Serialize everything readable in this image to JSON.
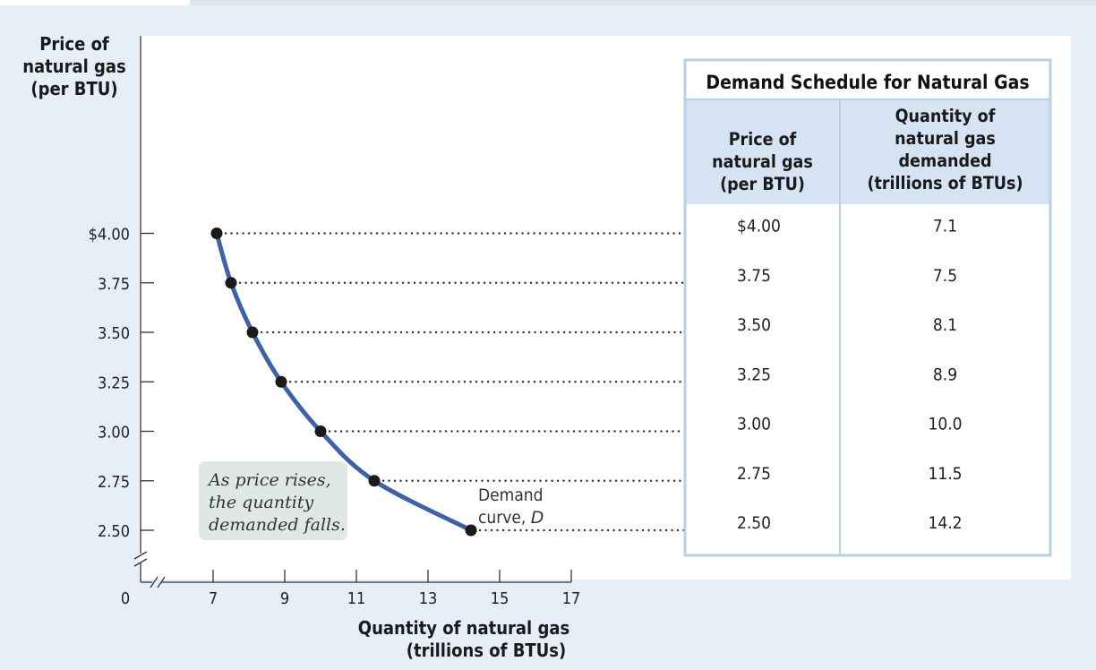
{
  "chart_data": {
    "type": "line",
    "ylabel": [
      "Price of",
      "natural gas",
      "(per BTU)"
    ],
    "xlabel": [
      "Quantity of natural gas",
      "(trillions of BTUs)"
    ],
    "y_ticks": [
      "$4.00",
      "3.75",
      "3.50",
      "3.25",
      "3.00",
      "2.75",
      "2.50"
    ],
    "y_tick_values": [
      4.0,
      3.75,
      3.5,
      3.25,
      3.0,
      2.75,
      2.5
    ],
    "x_ticks": [
      "7",
      "9",
      "11",
      "13",
      "15",
      "17"
    ],
    "x_tick_values": [
      7,
      9,
      11,
      13,
      15,
      17
    ],
    "origin_label": "0",
    "xlim": [
      7,
      17
    ],
    "ylim": [
      2.5,
      4.0
    ],
    "axis_break": true,
    "grid": false,
    "series": [
      {
        "label": [
          "Demand",
          "curve, "
        ],
        "label_italic": "D",
        "color": "#3d62a8",
        "points": [
          {
            "x": 7.1,
            "y": 4.0
          },
          {
            "x": 7.5,
            "y": 3.75
          },
          {
            "x": 8.1,
            "y": 3.5
          },
          {
            "x": 8.9,
            "y": 3.25
          },
          {
            "x": 10.0,
            "y": 3.0
          },
          {
            "x": 11.5,
            "y": 2.75
          },
          {
            "x": 14.2,
            "y": 2.5
          }
        ]
      }
    ],
    "annotation": [
      "As price rises,",
      "the quantity",
      "demanded falls."
    ],
    "table": {
      "title": "Demand Schedule for Natural Gas",
      "columns": [
        [
          "Price of",
          "natural gas",
          "(per BTU)"
        ],
        [
          "Quantity of",
          "natural gas",
          "demanded",
          "(trillions of BTUs)"
        ]
      ],
      "rows": [
        [
          "$4.00",
          "7.1"
        ],
        [
          "3.75",
          "7.5"
        ],
        [
          "3.50",
          "8.1"
        ],
        [
          "3.25",
          "8.9"
        ],
        [
          "3.00",
          "10.0"
        ],
        [
          "2.75",
          "11.5"
        ],
        [
          "2.50",
          "14.2"
        ]
      ]
    }
  },
  "colors": {
    "background": "#e6eef7",
    "panel": "#ffffff",
    "curve": "#3d62a8",
    "table_border": "#b7d0e6",
    "table_header": "#d6e3f2",
    "annotation_box": "#dfe8e4",
    "dots": "#1a1a1a"
  }
}
